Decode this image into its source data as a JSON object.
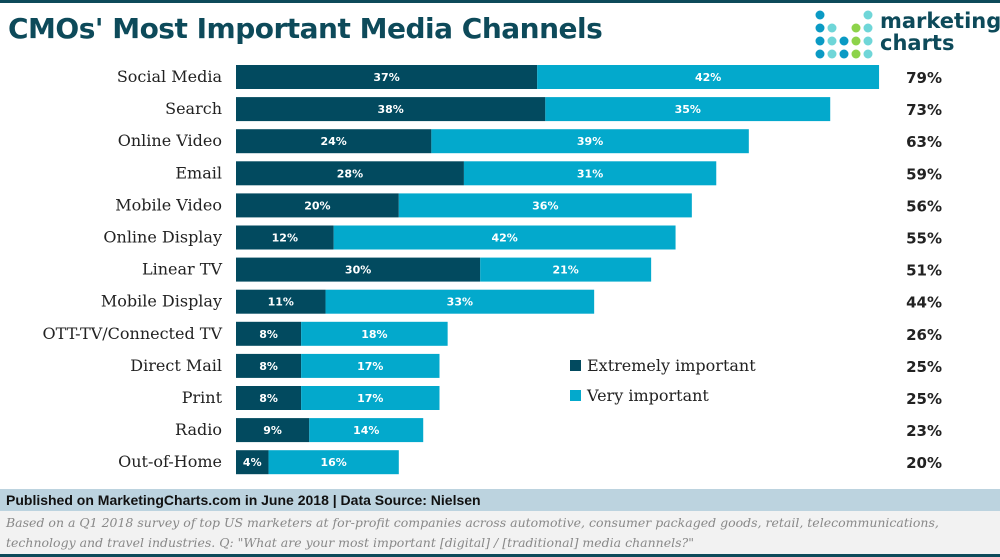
{
  "header": {
    "title": "CMOs' Most Important Media Channels",
    "logo_text": [
      "marketing",
      "charts"
    ]
  },
  "colors": {
    "extremely": "#024a5f",
    "very": "#03a9cc",
    "brand": "#0d4a5a"
  },
  "chart_data": {
    "type": "bar",
    "orientation": "horizontal",
    "stacked": true,
    "title": "CMOs' Most Important Media Channels",
    "categories": [
      "Social Media",
      "Search",
      "Online Video",
      "Email",
      "Mobile Video",
      "Online Display",
      "Linear TV",
      "Mobile Display",
      "OTT-TV/Connected TV",
      "Direct Mail",
      "Print",
      "Radio",
      "Out-of-Home"
    ],
    "series": [
      {
        "name": "Extremely important",
        "values": [
          37,
          38,
          24,
          28,
          20,
          12,
          30,
          11,
          8,
          8,
          8,
          9,
          4
        ]
      },
      {
        "name": "Very important",
        "values": [
          42,
          35,
          39,
          31,
          36,
          42,
          21,
          33,
          18,
          17,
          17,
          14,
          16
        ]
      }
    ],
    "totals": [
      79,
      73,
      63,
      59,
      56,
      55,
      51,
      44,
      26,
      25,
      25,
      23,
      20
    ],
    "legend_position": "center-right",
    "grid": false
  },
  "footer": {
    "published": "Published on MarketingCharts.com in June 2018 | Data Source: Nielsen",
    "note": "Based on a Q1 2018 survey of top US marketers at for-profit companies across automotive, consumer packaged goods, retail, telecommunications, technology and travel industries. Q: \"What are your most important [digital] / [traditional] media channels?\""
  }
}
